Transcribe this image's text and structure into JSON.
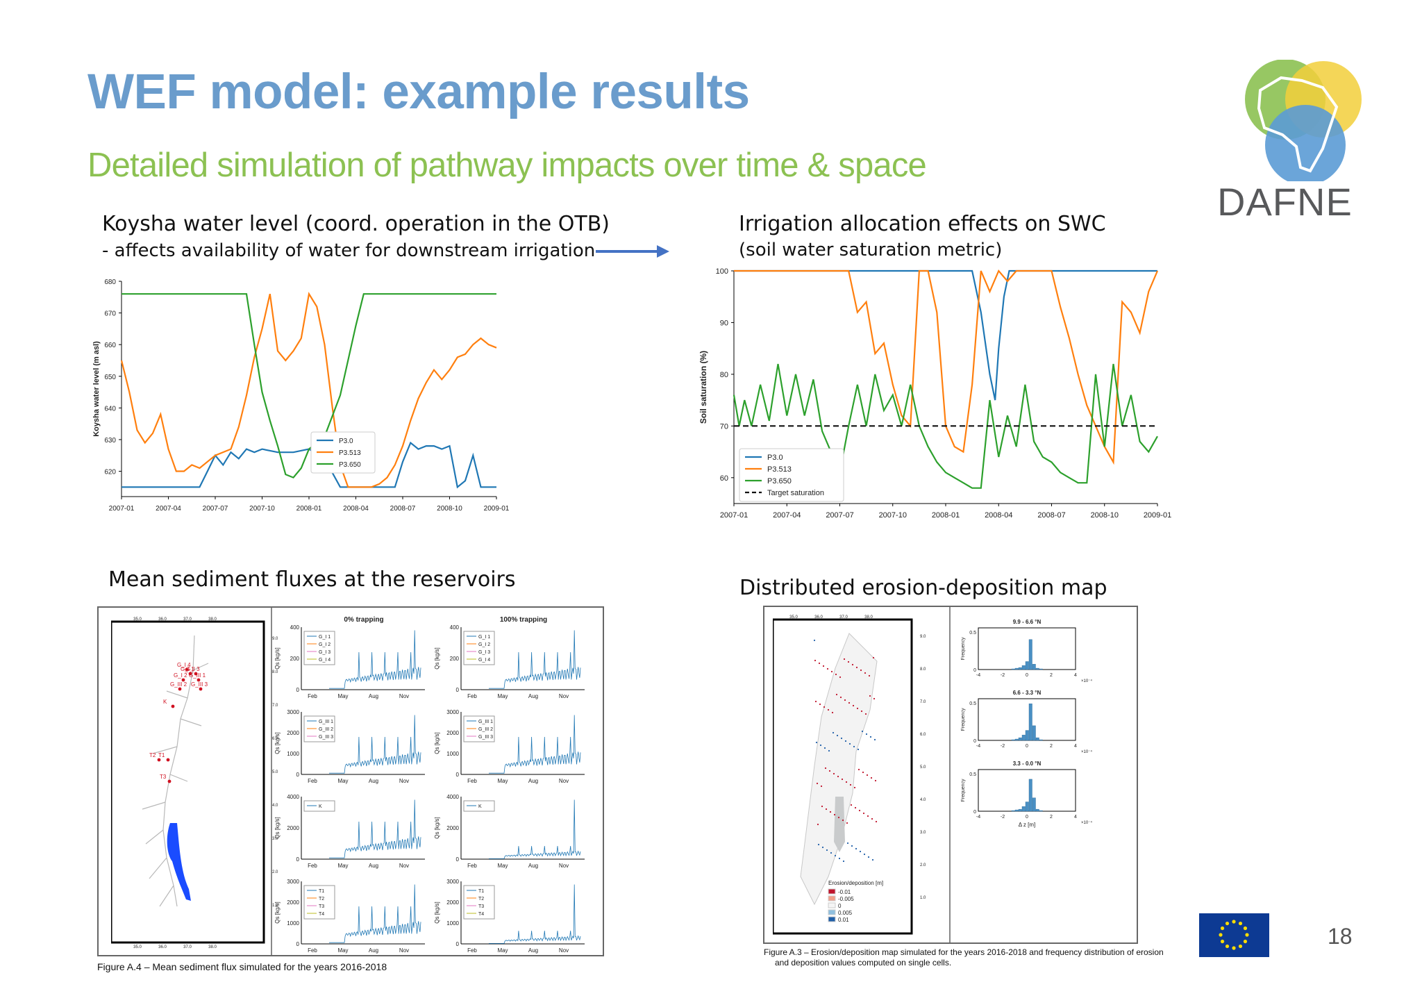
{
  "slide": {
    "title": "WEF model: example results",
    "subtitle": "Detailed simulation of pathway impacts over time & space",
    "logo_text": "DAFNE",
    "page_number": "18",
    "colors": {
      "title": "#6a9ccc",
      "subtitle": "#8cc152",
      "green": "#2ca02c",
      "orange": "#ff7f0e",
      "blue": "#1f77b4"
    }
  },
  "captions": {
    "koysha_title": "Koysha water level (coord. operation in the OTB)",
    "koysha_sub": "- affects availability of water for downstream irrigation",
    "swc_title": "Irrigation allocation effects on SWC",
    "swc_sub": "(soil water saturation metric)",
    "sediment_title": "Mean sediment fluxes at the reservoirs",
    "erosion_title": "Distributed erosion-deposition map",
    "fig_a4": "Figure A.4 – Mean sediment flux simulated for the years 2016-2018",
    "fig_a3_line1": "Figure A.3 – Erosion/deposition map simulated for the years 2016-2018 and frequency distribution of erosion",
    "fig_a3_line2": "and deposition values computed on single cells."
  },
  "chart_data": [
    {
      "type": "line",
      "ylabel": "Koysha water level (m asl)",
      "ylim": [
        612,
        680
      ],
      "yticks": [
        620,
        630,
        640,
        650,
        660,
        670,
        680
      ],
      "xtick_labels": [
        "2007-01",
        "2007-04",
        "2007-07",
        "2007-10",
        "2008-01",
        "2008-04",
        "2008-07",
        "2008-10",
        "2009-01"
      ],
      "xlim": [
        0,
        24
      ],
      "legend": "lower-center",
      "series": [
        {
          "name": "P3.0",
          "color": "#1f77b4",
          "x": [
            0,
            1,
            2,
            2.5,
            3,
            3.5,
            4,
            4.5,
            5,
            5.5,
            6,
            6.5,
            7,
            7.5,
            8,
            8.5,
            9,
            10,
            11,
            12,
            13,
            14,
            15,
            15.5,
            16,
            16.5,
            17,
            17.5,
            18,
            18.5,
            19,
            19.5,
            20,
            20.5,
            21,
            21.5,
            22,
            22.5,
            23,
            24
          ],
          "y": [
            615,
            615,
            615,
            615,
            615,
            615,
            615,
            615,
            615,
            620,
            625,
            622,
            626,
            624,
            627,
            626,
            627,
            626,
            626,
            627,
            624,
            615,
            615,
            615,
            615,
            615,
            615,
            615,
            623,
            629,
            627,
            628,
            628,
            627,
            628,
            615,
            617,
            625,
            615,
            615
          ]
        },
        {
          "name": "P3.513",
          "color": "#ff7f0e",
          "x": [
            0,
            0.5,
            1,
            1.5,
            2,
            2.5,
            3,
            3.5,
            4,
            4.5,
            5,
            6,
            7,
            7.5,
            8,
            8.5,
            9,
            9.5,
            10,
            10.5,
            11,
            11.5,
            12,
            12.5,
            13,
            13.5,
            14,
            14.5,
            15,
            15.5,
            16,
            16.5,
            17,
            17.5,
            18,
            18.5,
            19,
            19.5,
            20,
            20.5,
            21,
            21.5,
            22,
            22.5,
            23,
            23.5,
            24
          ],
          "y": [
            655,
            645,
            633,
            629,
            632,
            638,
            627,
            620,
            620,
            622,
            621,
            625,
            627,
            634,
            644,
            656,
            665,
            676,
            658,
            655,
            658,
            662,
            676,
            672,
            660,
            640,
            622,
            615,
            615,
            615,
            615,
            616,
            618,
            622,
            628,
            636,
            643,
            648,
            652,
            649,
            652,
            656,
            657,
            660,
            662,
            660,
            659
          ]
        },
        {
          "name": "P3.650",
          "color": "#2ca02c",
          "x": [
            0,
            2,
            4,
            6,
            7,
            7.5,
            8,
            8.5,
            9,
            9.5,
            10,
            10.5,
            11,
            11.5,
            12,
            13,
            14,
            15,
            15.5,
            16,
            18,
            20,
            22,
            24
          ],
          "y": [
            676,
            676,
            676,
            676,
            676,
            676,
            676,
            660,
            645,
            636,
            628,
            619,
            618,
            621,
            627,
            631,
            644,
            666,
            676,
            676,
            676,
            676,
            676,
            676
          ]
        }
      ]
    },
    {
      "type": "line",
      "ylabel": "Soil saturation (%)",
      "ylim": [
        55,
        100
      ],
      "yticks": [
        60,
        70,
        80,
        90,
        100
      ],
      "xtick_labels": [
        "2007-01",
        "2007-04",
        "2007-07",
        "2007-10",
        "2008-01",
        "2008-04",
        "2008-07",
        "2008-10",
        "2009-01"
      ],
      "xlim": [
        0,
        24
      ],
      "legend": "lower-left",
      "series": [
        {
          "name": "P3.0",
          "color": "#1f77b4",
          "x": [
            0,
            2,
            4,
            6,
            8,
            10,
            12,
            13.5,
            14,
            14.5,
            14.8,
            15,
            15.3,
            15.6,
            16,
            18,
            20,
            22,
            24
          ],
          "y": [
            100,
            100,
            100,
            100,
            100,
            100,
            100,
            100,
            92,
            80,
            75,
            85,
            95,
            100,
            100,
            100,
            100,
            100,
            100
          ]
        },
        {
          "name": "P3.513",
          "color": "#ff7f0e",
          "x": [
            0,
            2,
            4,
            6,
            6.5,
            7,
            7.5,
            8,
            8.5,
            9,
            9.5,
            10,
            10.5,
            11,
            11.5,
            12,
            12.5,
            13,
            13.5,
            14,
            14.5,
            15,
            15.5,
            16,
            17,
            18,
            18.5,
            19,
            19.5,
            20,
            20.5,
            21,
            21.5,
            22,
            22.5,
            23,
            23.5,
            24
          ],
          "y": [
            100,
            100,
            100,
            100,
            100,
            92,
            94,
            84,
            86,
            78,
            72,
            70,
            100,
            100,
            92,
            70,
            66,
            65,
            78,
            100,
            96,
            100,
            98,
            100,
            100,
            100,
            93,
            87,
            80,
            74,
            70,
            66,
            63,
            94,
            92,
            88,
            96,
            100
          ]
        },
        {
          "name": "P3.650",
          "color": "#2ca02c",
          "x": [
            0,
            0.3,
            0.6,
            1,
            1.5,
            2,
            2.5,
            3,
            3.5,
            4,
            4.5,
            5,
            5.5,
            6,
            6.5,
            7,
            7.5,
            8,
            8.5,
            9,
            9.5,
            10,
            10.5,
            11,
            11.5,
            12,
            12.5,
            13,
            13.5,
            14,
            14.5,
            15,
            15.5,
            16,
            16.5,
            17,
            17.5,
            18,
            18.5,
            19,
            19.5,
            20,
            20.5,
            21,
            21.5,
            22,
            22.5,
            23,
            23.5,
            24
          ],
          "y": [
            76,
            70,
            75,
            70,
            78,
            71,
            82,
            72,
            80,
            72,
            79,
            69,
            65,
            61,
            70,
            78,
            70,
            80,
            73,
            76,
            70,
            78,
            70,
            66,
            63,
            61,
            60,
            59,
            58,
            58,
            75,
            64,
            72,
            66,
            78,
            67,
            64,
            63,
            61,
            60,
            59,
            59,
            80,
            66,
            82,
            70,
            76,
            67,
            65,
            68
          ]
        },
        {
          "name": "Target saturation",
          "color": "#111111",
          "dashed": true,
          "x": [
            0,
            24
          ],
          "y": [
            70,
            70
          ]
        }
      ]
    },
    {
      "type": "line",
      "title": "0% trapping / 100% trapping",
      "ylabel": "Qs [kg/s]",
      "xtick_labels": [
        "Feb",
        "May",
        "Aug",
        "Nov"
      ],
      "panel_titles": [
        "0% trapping",
        "100% trapping"
      ],
      "rows": [
        {
          "ymax": 400,
          "yticks": [
            0,
            200,
            400
          ],
          "legend": [
            "G_I 1",
            "G_I 2",
            "G_I 3",
            "G_I 4"
          ]
        },
        {
          "ymax": 3000,
          "yticks": [
            0,
            1000,
            2000,
            3000
          ],
          "legend": [
            "G_III 1",
            "G_III 2",
            "G_III 3"
          ]
        },
        {
          "ymax": 4000,
          "yticks": [
            0,
            2000,
            4000
          ],
          "legend": [
            "K"
          ]
        },
        {
          "ymax": 3000,
          "yticks": [
            0,
            1000,
            2000,
            3000
          ],
          "legend": [
            "T1",
            "T2",
            "T3",
            "T4"
          ]
        }
      ]
    },
    {
      "type": "bar",
      "xlabel": "Δ z [m]",
      "ylabel": "Frequency",
      "x_scale_note": "×10⁻⁴",
      "xtick_labels": [
        "-4",
        "-2",
        "0",
        "2",
        "4"
      ],
      "yticks": [
        "0",
        "0.5"
      ],
      "panels": [
        {
          "title": "9.9 - 6.6 °N",
          "values": [
            0.01,
            0.02,
            0.03,
            0.06,
            0.12,
            0.45,
            0.08,
            0.02,
            0.01
          ]
        },
        {
          "title": "6.6 - 3.3 °N",
          "values": [
            0.01,
            0.02,
            0.04,
            0.08,
            0.15,
            0.55,
            0.22,
            0.04,
            0.01
          ]
        },
        {
          "title": "3.3 - 0.0 °N",
          "values": [
            0.01,
            0.02,
            0.03,
            0.07,
            0.14,
            0.48,
            0.2,
            0.03,
            0.01
          ]
        }
      ]
    }
  ],
  "map_a4": {
    "labels": [
      "G_I 4",
      "G_I 1",
      "G_I 3",
      "G_I 2",
      "G_III 1",
      "G_III 2",
      "G_III 3",
      "K",
      "T2",
      "T1",
      "T3"
    ],
    "top_ticks": [
      "35.0",
      "36.0",
      "37.0",
      "38.0"
    ],
    "side_ticks": [
      "9.0",
      "8.0",
      "7.0",
      "6.0",
      "5.0",
      "4.0",
      "3.0",
      "2.0",
      "1.0"
    ]
  },
  "map_a3": {
    "legend_title": "Erosion/deposition [m]",
    "legend": [
      {
        "label": "-0.01",
        "color": "#c0142c"
      },
      {
        "label": "-0.005",
        "color": "#f2a08a"
      },
      {
        "label": "0",
        "color": "#f5f5f5"
      },
      {
        "label": "0.005",
        "color": "#8fbfdf"
      },
      {
        "label": "0.01",
        "color": "#1f5fa8"
      }
    ],
    "top_ticks": [
      "35.0",
      "36.0",
      "37.0",
      "38.0"
    ],
    "side_ticks": [
      "9.0",
      "8.0",
      "7.0",
      "6.0",
      "5.0",
      "4.0",
      "3.0",
      "2.0",
      "1.0"
    ]
  }
}
